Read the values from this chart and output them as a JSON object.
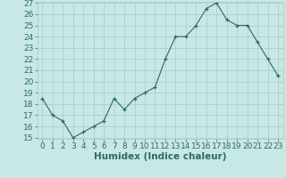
{
  "x": [
    0,
    1,
    2,
    3,
    4,
    5,
    6,
    7,
    8,
    9,
    10,
    11,
    12,
    13,
    14,
    15,
    16,
    17,
    18,
    19,
    20,
    21,
    22,
    23
  ],
  "y": [
    18.5,
    17.0,
    16.5,
    15.0,
    15.5,
    16.0,
    16.5,
    18.5,
    17.5,
    18.5,
    19.0,
    19.5,
    22.0,
    24.0,
    24.0,
    25.0,
    26.5,
    27.0,
    25.5,
    25.0,
    25.0,
    23.5,
    22.0,
    20.5
  ],
  "xlabel": "Humidex (Indice chaleur)",
  "ylim": [
    15,
    27
  ],
  "xlim": [
    -0.5,
    23.5
  ],
  "yticks": [
    15,
    16,
    17,
    18,
    19,
    20,
    21,
    22,
    23,
    24,
    25,
    26,
    27
  ],
  "xticks": [
    0,
    1,
    2,
    3,
    4,
    5,
    6,
    7,
    8,
    9,
    10,
    11,
    12,
    13,
    14,
    15,
    16,
    17,
    18,
    19,
    20,
    21,
    22,
    23
  ],
  "line_color": "#2d6b5e",
  "bg_color": "#c8e8e5",
  "grid_color": "#a8ccc9",
  "xlabel_fontsize": 7.5,
  "tick_fontsize": 6.5
}
